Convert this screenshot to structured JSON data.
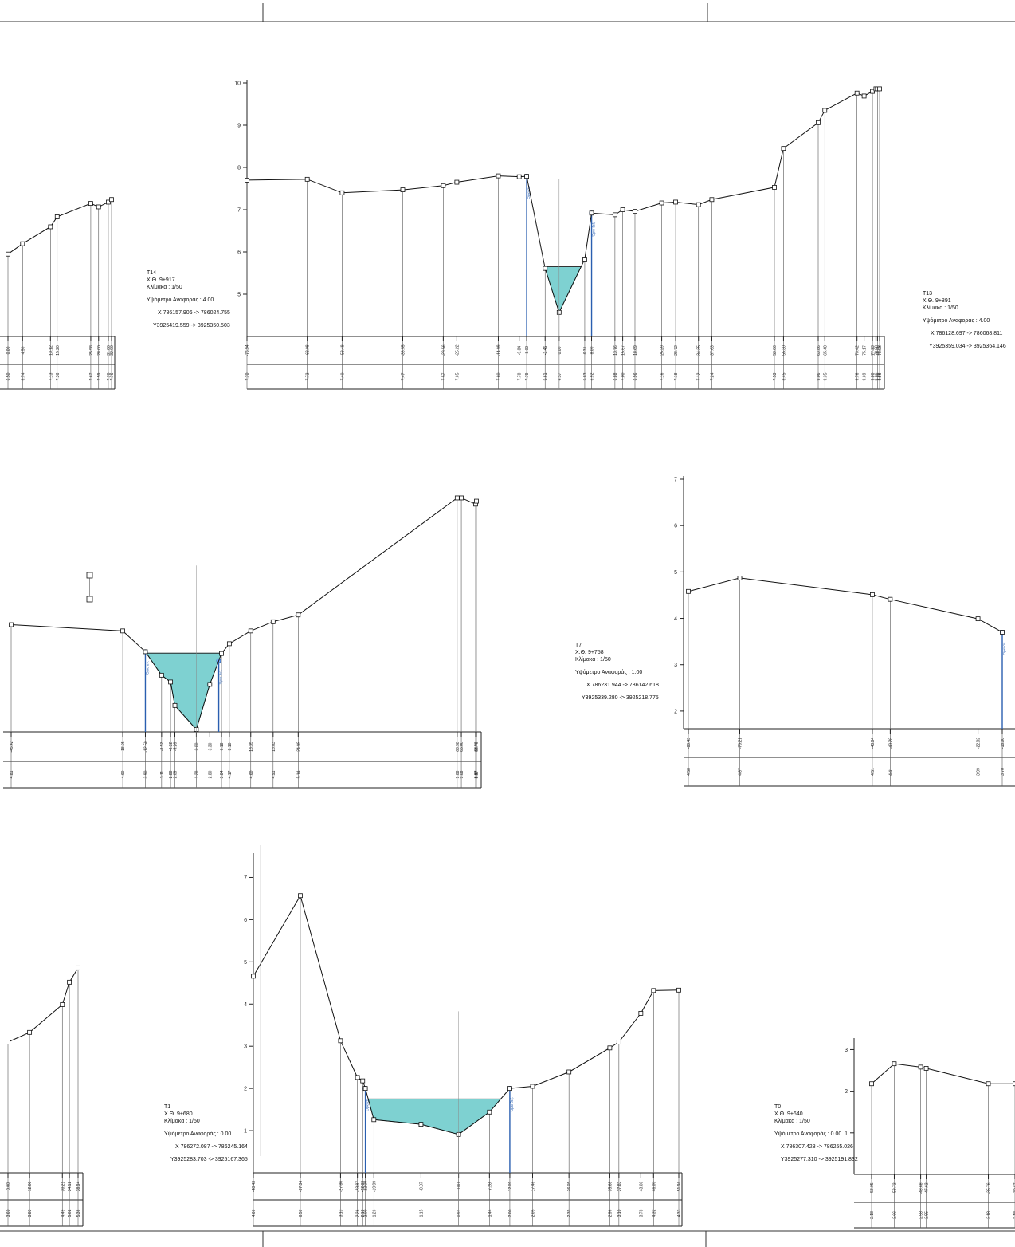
{
  "sections": [
    {
      "id": "T14",
      "info": {
        "name": "T14",
        "chainage": "Χ.Θ. 9+917",
        "scale": "Κλίμακα : 1/50",
        "ref_level": "Υψόμετρο Αναφοράς : 4.00",
        "x_coord": "X 786157.906 -> 786024.755",
        "y_coord": "Y3925419.559 -> 3925350.503"
      },
      "y_ticks": [
        "5",
        "6",
        "7",
        "8",
        "9",
        "10"
      ],
      "ground": [
        {
          "x": -76.94,
          "z": 7.7
        },
        {
          "x": -62.08,
          "z": 7.72
        },
        {
          "x": -53.49,
          "z": 7.4
        },
        {
          "x": -38.55,
          "z": 7.47
        },
        {
          "x": -28.56,
          "z": 7.57
        },
        {
          "x": -25.22,
          "z": 7.65
        },
        {
          "x": -14.99,
          "z": 7.8
        },
        {
          "x": -9.84,
          "z": 7.78
        },
        {
          "x": -8.0,
          "z": 7.79
        },
        {
          "x": -3.45,
          "z": 5.61
        },
        {
          "x": 0.0,
          "z": 4.57
        },
        {
          "x": 6.31,
          "z": 5.83
        },
        {
          "x": 8.0,
          "z": 6.92
        },
        {
          "x": 13.76,
          "z": 6.88
        },
        {
          "x": 15.67,
          "z": 7.0
        },
        {
          "x": 18.69,
          "z": 6.96
        },
        {
          "x": 25.29,
          "z": 7.16
        },
        {
          "x": 28.72,
          "z": 7.18
        },
        {
          "x": 34.35,
          "z": 7.12
        },
        {
          "x": 37.63,
          "z": 7.24
        },
        {
          "x": 53.06,
          "z": 7.53
        },
        {
          "x": 55.3,
          "z": 8.45
        },
        {
          "x": 63.86,
          "z": 9.06
        },
        {
          "x": 65.48,
          "z": 9.35
        },
        {
          "x": 73.42,
          "z": 9.76
        },
        {
          "x": 75.17,
          "z": 9.69
        },
        {
          "x": 77.23,
          "z": 9.8
        },
        {
          "x": 78.08,
          "z": 9.86
        },
        {
          "x": 78.46,
          "z": 9.86
        },
        {
          "x": 78.98,
          "z": 9.86
        }
      ],
      "water_level": 5.65,
      "banks": [
        {
          "x": -8.0,
          "label": "Όριο αν."
        },
        {
          "x": 8.0,
          "label": "Όριο δεξ."
        }
      ]
    },
    {
      "id": "T7",
      "info": {
        "name": "T7",
        "chainage": "Χ.Θ. 9+758",
        "scale": "Κλίμακα : 1/50",
        "ref_level": "Υψόμετρο Αναφοράς : 1.00",
        "x_coord": "X 786231.944 -> 786142.618",
        "y_coord": "Y3925339.280 -> 3925218.775"
      },
      "y_ticks": [
        "2",
        "3",
        "4",
        "5",
        "6",
        "7"
      ],
      "ground": [
        {
          "x": -80.43,
          "z": 4.58
        },
        {
          "x": -70.21,
          "z": 4.87
        },
        {
          "x": -43.84,
          "z": 4.51
        },
        {
          "x": -40.28,
          "z": 4.41
        },
        {
          "x": -22.82,
          "z": 3.99
        },
        {
          "x": -18.0,
          "z": 3.7
        }
      ],
      "banks": [
        {
          "x": -18.0,
          "label": "Όριο αν."
        }
      ]
    },
    {
      "id": "MID",
      "ground": [
        {
          "x": -45.42,
          "z": 4.81
        },
        {
          "x": -18.05,
          "z": 4.6
        },
        {
          "x": -12.5,
          "z": 3.9
        },
        {
          "x": -8.52,
          "z": 3.11
        },
        {
          "x": -6.32,
          "z": 2.88
        },
        {
          "x": -5.26,
          "z": 2.09
        },
        {
          "x": 0.0,
          "z": 1.28
        },
        {
          "x": 3.3,
          "z": 2.8
        },
        {
          "x": 6.18,
          "z": 3.84
        },
        {
          "x": 8.1,
          "z": 4.17
        },
        {
          "x": 13.35,
          "z": 4.6
        },
        {
          "x": 18.83,
          "z": 4.91
        },
        {
          "x": 24.99,
          "z": 5.14
        },
        {
          "x": 63.98,
          "z": 9.08
        },
        {
          "x": 65.0,
          "z": 9.08
        },
        {
          "x": 68.5,
          "z": 8.87
        },
        {
          "x": 68.7,
          "z": 8.97
        }
      ],
      "water_level": 3.85,
      "banks": [
        {
          "x": -12.5,
          "label": "Όριο αν."
        },
        {
          "x": 5.5,
          "label": "Όριο δεξ."
        }
      ]
    },
    {
      "id": "T1",
      "info": {
        "name": "T1",
        "chainage": "Χ.Θ. 9+680",
        "scale": "Κλίμακα : 1/50",
        "ref_level": "Υψόμετρο Αναφοράς : 0.00",
        "x_coord": "X 786272.087 -> 786245.164",
        "y_coord": "Y3925283.703 -> 3925167.365"
      },
      "y_ticks": [
        "1",
        "2",
        "3",
        "4",
        "5",
        "6",
        "7"
      ],
      "ground": [
        {
          "x": -48.43,
          "z": 4.66
        },
        {
          "x": -37.34,
          "z": 6.57
        },
        {
          "x": -27.86,
          "z": 3.13
        },
        {
          "x": -23.87,
          "z": 2.26
        },
        {
          "x": -22.63,
          "z": 2.18
        },
        {
          "x": -22.0,
          "z": 2.0
        },
        {
          "x": -19.99,
          "z": 1.26
        },
        {
          "x": -8.87,
          "z": 1.15
        },
        {
          "x": 0.0,
          "z": 0.91
        },
        {
          "x": 7.28,
          "z": 1.44
        },
        {
          "x": 12.09,
          "z": 2.0
        },
        {
          "x": 17.46,
          "z": 2.05
        },
        {
          "x": 26.05,
          "z": 2.39
        },
        {
          "x": 35.68,
          "z": 2.96
        },
        {
          "x": 37.83,
          "z": 3.1
        },
        {
          "x": 43.0,
          "z": 3.78
        },
        {
          "x": 46.0,
          "z": 4.32
        },
        {
          "x": 51.96,
          "z": 4.33
        }
      ],
      "water_level": 1.75,
      "banks": [
        {
          "x": -22.0,
          "label": "Όριο αν."
        },
        {
          "x": 12.09,
          "label": "Όριο δεξ."
        }
      ]
    },
    {
      "id": "T0",
      "info": {
        "name": "T0",
        "chainage": "Χ.Θ. 9+640",
        "scale": "Κλίμακα : 1/50",
        "ref_level": "Υψόμετρο Αναφοράς : 0.00",
        "x_coord": "X 786307.428 -> 786255.026",
        "y_coord": "Y3925277.310 -> 3925191.832"
      },
      "y_ticks": [
        "1",
        "2",
        "3"
      ],
      "ground": [
        {
          "x": -58.05,
          "z": 2.18
        },
        {
          "x": -53.72,
          "z": 2.66
        },
        {
          "x": -48.68,
          "z": 2.58
        },
        {
          "x": -47.62,
          "z": 2.55
        },
        {
          "x": -35.76,
          "z": 2.18
        },
        {
          "x": -30.67,
          "z": 2.18
        }
      ]
    },
    {
      "id": "LEFT-TOP",
      "ground": [
        {
          "x": 0,
          "z": 6.5
        },
        {
          "x": 4.5,
          "z": 6.74
        },
        {
          "x": 13.12,
          "z": 7.13
        },
        {
          "x": 15.2,
          "z": 7.36
        },
        {
          "x": 25.58,
          "z": 7.67
        },
        {
          "x": 28.0,
          "z": 7.59
        },
        {
          "x": 31.0,
          "z": 7.7
        },
        {
          "x": 32.0,
          "z": 7.76
        }
      ]
    },
    {
      "id": "LEFT-BOTTOM",
      "ground": [
        {
          "x": 0,
          "z": 3.6
        },
        {
          "x": 12.0,
          "z": 3.83
        },
        {
          "x": 30.21,
          "z": 4.49
        },
        {
          "x": 34.12,
          "z": 5.02
        },
        {
          "x": 38.94,
          "z": 5.36
        }
      ]
    }
  ]
}
